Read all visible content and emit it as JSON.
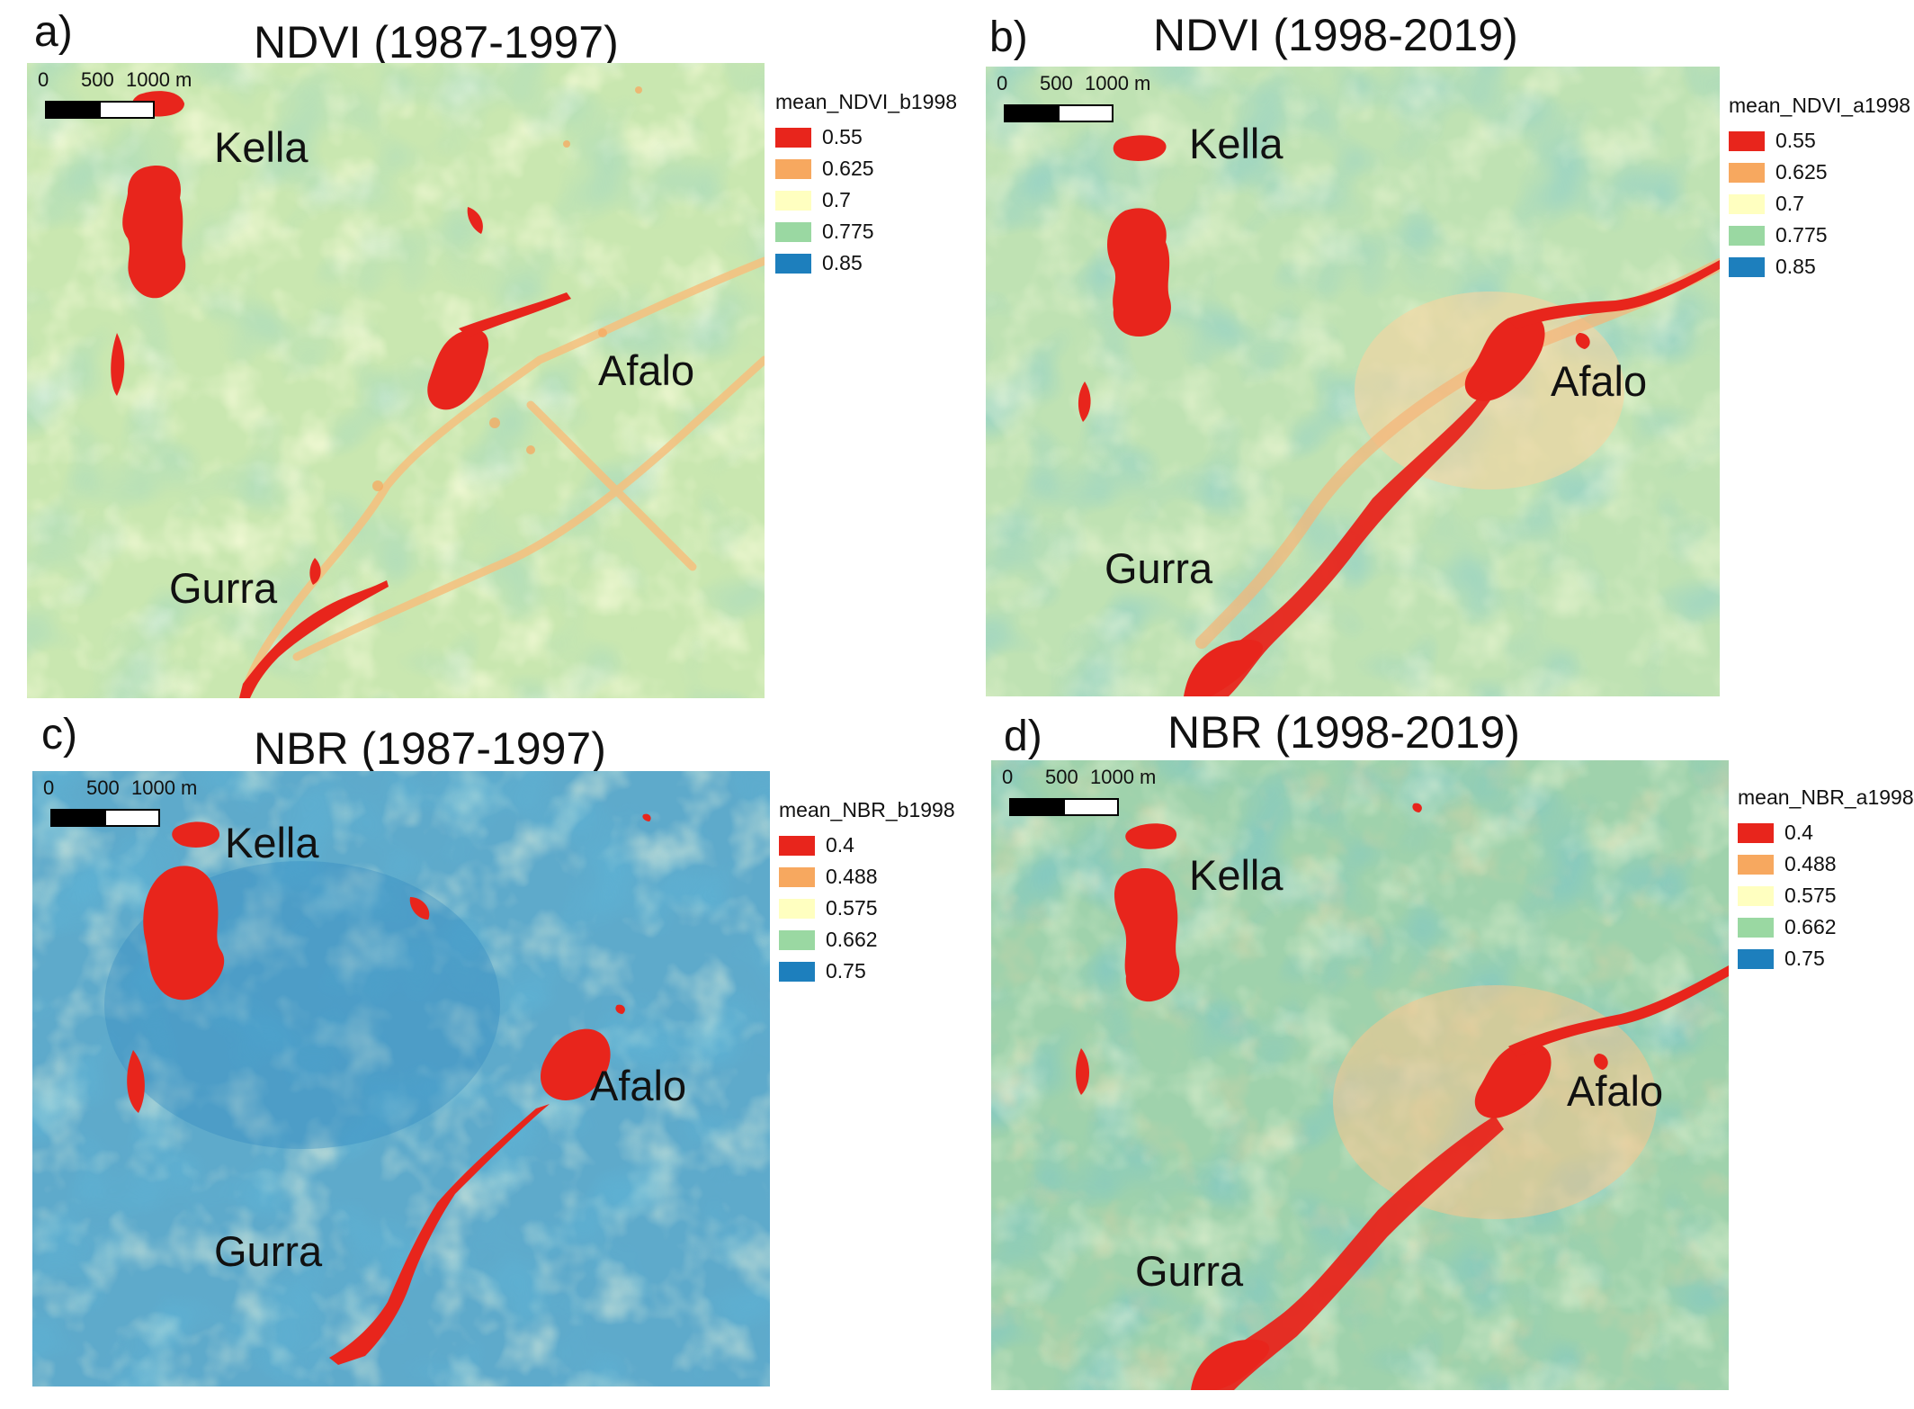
{
  "panels": [
    {
      "letter": "a)",
      "title": "NDVI (1987-1997)",
      "scale": {
        "s0": "0",
        "s1": "500",
        "s2": "1000 m"
      },
      "places": {
        "kella": "Kella",
        "afalo": "Afalo",
        "gurra": "Gurra"
      },
      "legend": {
        "title": "mean_NDVI_b1998",
        "items": [
          {
            "label": "0.55",
            "color": "#e8251c"
          },
          {
            "label": "0.625",
            "color": "#f7a85f"
          },
          {
            "label": "0.7",
            "color": "#ffffc0"
          },
          {
            "label": "0.775",
            "color": "#9ad8a2"
          },
          {
            "label": "0.85",
            "color": "#1d7fbd"
          }
        ]
      }
    },
    {
      "letter": "b)",
      "title": "NDVI (1998-2019)",
      "scale": {
        "s0": "0",
        "s1": "500",
        "s2": "1000 m"
      },
      "places": {
        "kella": "Kella",
        "afalo": "Afalo",
        "gurra": "Gurra"
      },
      "legend": {
        "title": "mean_NDVI_a1998",
        "items": [
          {
            "label": "0.55",
            "color": "#e8251c"
          },
          {
            "label": "0.625",
            "color": "#f7a85f"
          },
          {
            "label": "0.7",
            "color": "#ffffc0"
          },
          {
            "label": "0.775",
            "color": "#9ad8a2"
          },
          {
            "label": "0.85",
            "color": "#1d7fbd"
          }
        ]
      }
    },
    {
      "letter": "c)",
      "title": "NBR (1987-1997)",
      "scale": {
        "s0": "0",
        "s1": "500",
        "s2": "1000 m"
      },
      "places": {
        "kella": "Kella",
        "afalo": "Afalo",
        "gurra": "Gurra"
      },
      "legend": {
        "title": "mean_NBR_b1998",
        "items": [
          {
            "label": "0.4",
            "color": "#e8251c"
          },
          {
            "label": "0.488",
            "color": "#f7a85f"
          },
          {
            "label": "0.575",
            "color": "#ffffc0"
          },
          {
            "label": "0.662",
            "color": "#9ad8a2"
          },
          {
            "label": "0.75",
            "color": "#1d7fbd"
          }
        ]
      }
    },
    {
      "letter": "d)",
      "title": "NBR (1998-2019)",
      "scale": {
        "s0": "0",
        "s1": "500",
        "s2": "1000 m"
      },
      "places": {
        "kella": "Kella",
        "afalo": "Afalo",
        "gurra": "Gurra"
      },
      "legend": {
        "title": "mean_NBR_a1998",
        "items": [
          {
            "label": "0.4",
            "color": "#e8251c"
          },
          {
            "label": "0.488",
            "color": "#f7a85f"
          },
          {
            "label": "0.575",
            "color": "#ffffc0"
          },
          {
            "label": "0.662",
            "color": "#9ad8a2"
          },
          {
            "label": "0.75",
            "color": "#1d7fbd"
          }
        ]
      }
    }
  ]
}
